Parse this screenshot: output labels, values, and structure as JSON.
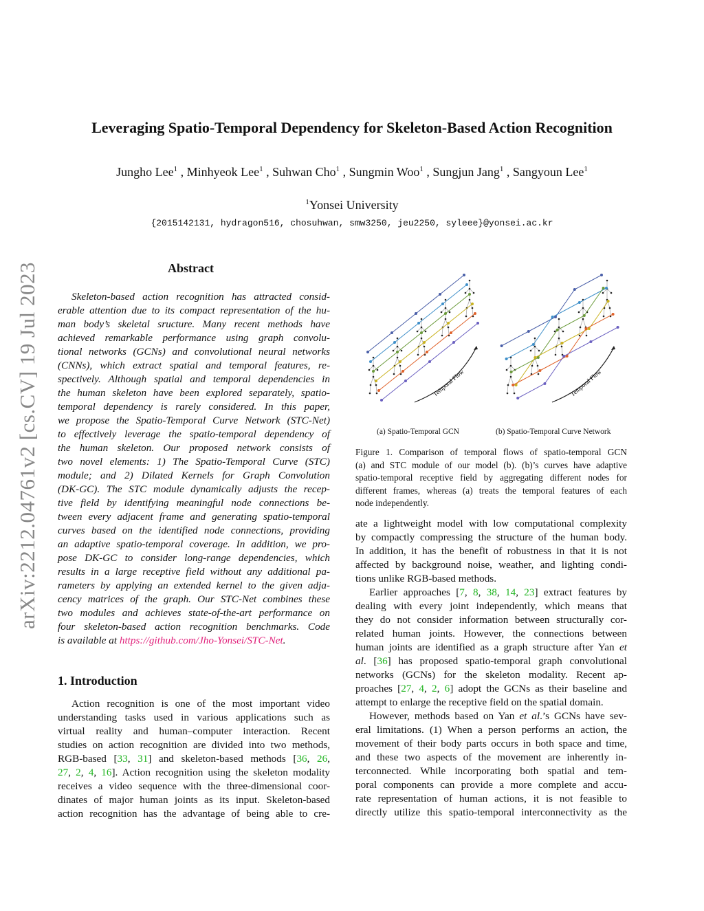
{
  "title": "Leveraging Spatio-Temporal Dependency for Skeleton-Based Action Recognition",
  "authors": [
    {
      "name": "Jungho Lee",
      "aff": "1"
    },
    {
      "name": "Minhyeok Lee",
      "aff": "1"
    },
    {
      "name": "Suhwan Cho",
      "aff": "1"
    },
    {
      "name": "Sungmin Woo",
      "aff": "1"
    },
    {
      "name": "Sungjun Jang",
      "aff": "1"
    },
    {
      "name": "Sangyoun Lee",
      "aff": "1"
    }
  ],
  "affiliation": {
    "mark": "1",
    "name": "Yonsei University"
  },
  "emails": "{2015142131, hydragon516, chosuhwan, smw3250, jeu2250, syleee}@yonsei.ac.kr",
  "arxiv_id": "arXiv:2212.04761v2  [cs.CV]  19 Jul 2023",
  "abstract": {
    "heading": "Abstract",
    "lines": [
      "Skeleton-based action recognition has attracted consid-",
      "erable attention due to its compact representation of the hu-",
      "man body’s skeletal sructure.  Many recent methods have",
      "achieved remarkable performance using graph convolu-",
      "tional networks (GCNs) and convolutional neural networks",
      "(CNNs), which extract spatial and temporal features, re-",
      "spectively.  Although spatial and temporal dependencies in",
      "the human skeleton have been explored separately, spatio-",
      "temporal dependency is rarely considered.  In this paper,",
      "we propose the Spatio-Temporal Curve Network (STC-Net)",
      "to effectively leverage the spatio-temporal dependency of",
      "the human skeleton.  Our proposed network consists of",
      "two novel elements:  1) The Spatio-Temporal Curve (STC)",
      "module;  and 2) Dilated Kernels for Graph Convolution",
      "(DK-GC). The STC module dynamically adjusts the recep-",
      "tive field by identifying meaningful node connections be-",
      "tween every adjacent frame and generating spatio-temporal",
      "curves based on the identified node connections, providing",
      "an adaptive spatio-temporal coverage. In addition, we pro-",
      "pose DK-GC to consider long-range dependencies, which",
      "results in a large receptive field without any additional pa-",
      "rameters by applying an extended kernel to the given adja-",
      "cency matrices of the graph.  Our STC-Net combines these",
      "two modules and achieves state-of-the-art performance on",
      "four skeleton-based action recognition benchmarks.  Code",
      [
        "is available at ",
        {
          "link": "https://github.com/Jho-Yonsei/STC-Net"
        },
        "."
      ]
    ]
  },
  "intro": {
    "heading": "1. Introduction",
    "lines": [
      "Action recognition is one of the most important video",
      "understanding tasks used in various applications such as",
      "virtual reality and human–computer interaction.   Recent",
      "studies on action recognition are divided into two methods,",
      [
        "RGB-based [",
        {
          "cite": "33"
        },
        ", ",
        {
          "cite": "31"
        },
        "] and skeleton-based methods [",
        {
          "cite": "36"
        },
        ", ",
        {
          "cite": "26"
        },
        ","
      ],
      [
        {
          "cite": "27"
        },
        ", ",
        {
          "cite": "2"
        },
        ", ",
        {
          "cite": "4"
        },
        ", ",
        {
          "cite": "16"
        },
        "]. Action recognition using the skeleton modality"
      ],
      "receives a video sequence with the three-dimensional coor-",
      "dinates of major human joints as its input.  Skeleton-based",
      "action recognition has the advantage of being able to cre-"
    ]
  },
  "figure": {
    "sub_a": "(a) Spatio-Temporal GCN",
    "sub_b": "(b) Spatio-Temporal Curve Network",
    "arrow_label": "Temporal Flow",
    "colors": [
      "#4a5fa8",
      "#3e8fc9",
      "#6a9a3a",
      "#c9b21f",
      "#e0622a",
      "#6a5fc0"
    ],
    "caption": [
      "Figure 1. Comparison of temporal flows of spatio-temporal GCN",
      "(a) and STC module of our model (b).  (b)’s curves have adaptive",
      "spatio-temporal receptive field by aggregating different nodes for",
      "different frames, whereas (a) treats the temporal features of each",
      "node independently."
    ]
  },
  "right": {
    "lines": [
      {
        "t": "ate a lightweight model with low computational complexity"
      },
      {
        "t": "by compactly compressing the structure of the human body."
      },
      {
        "t": "In addition, it has the benefit of robustness in that it is not"
      },
      {
        "t": "affected by background noise, weather, and lighting condi-"
      },
      {
        "t": "tions unlike RGB-based methods.",
        "last": true
      },
      {
        "t": [
          "Earlier approaches [",
          {
            "cite": "7"
          },
          ", ",
          {
            "cite": "8"
          },
          ", ",
          {
            "cite": "38"
          },
          ", ",
          {
            "cite": "14"
          },
          ", ",
          {
            "cite": "23"
          },
          "] extract features by"
        ],
        "ind": true
      },
      {
        "t": "dealing with every joint independently, which means that"
      },
      {
        "t": "they do not consider information between structurally cor-"
      },
      {
        "t": "related human joints.  However, the connections between"
      },
      {
        "t": [
          "human joints are identified as a graph structure after Yan ",
          {
            "it": "et"
          }
        ]
      },
      {
        "t": [
          {
            "it": "al"
          },
          ". [",
          {
            "cite": "36"
          },
          "] has proposed spatio-temporal graph convolutional"
        ]
      },
      {
        "t": "networks (GCNs) for the skeleton modality.   Recent ap-"
      },
      {
        "t": [
          "proaches [",
          {
            "cite": "27"
          },
          ", ",
          {
            "cite": "4"
          },
          ", ",
          {
            "cite": "2"
          },
          ", ",
          {
            "cite": "6"
          },
          "] adopt the GCNs as their baseline and"
        ]
      },
      {
        "t": "attempt to enlarge the receptive field on the spatial domain.",
        "last": true
      },
      {
        "t": [
          "However, methods based on Yan ",
          {
            "it": "et al"
          },
          ".’s GCNs have sev-"
        ],
        "ind": true
      },
      {
        "t": "eral limitations. (1) When a person performs an action, the"
      },
      {
        "t": "movement of their body parts occurs in both space and time,"
      },
      {
        "t": "and these two aspects of the movement are inherently in-"
      },
      {
        "t": "terconnected.   While incorporating both spatial and tem-"
      },
      {
        "t": "poral components can provide a more complete and accu-"
      },
      {
        "t": "rate representation of human actions, it is not feasible to"
      },
      {
        "t": "directly utilize this spatio-temporal interconnectivity as the"
      }
    ]
  }
}
